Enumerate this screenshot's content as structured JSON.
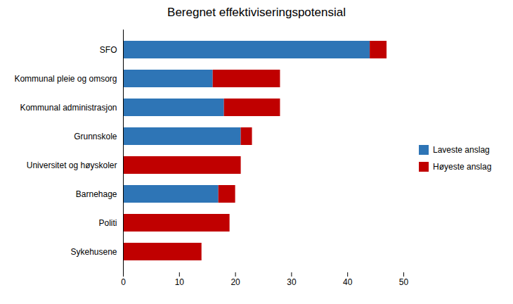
{
  "chart_data": {
    "type": "bar",
    "orientation": "horizontal",
    "stacked": true,
    "title": "Beregnet effektiviseringspotensial",
    "categories": [
      "Sykehusene",
      "Politi",
      "Barnehage",
      "Universitet og høyskoler",
      "Grunnskole",
      "Kommunal administrasjon",
      "Kommunal pleie og omsorg",
      "SFO"
    ],
    "series": [
      {
        "name": "Laveste anslag",
        "color": "#2E75B6",
        "values": [
          0,
          0,
          17,
          0,
          21,
          18,
          16,
          44
        ]
      },
      {
        "name": "Høyeste anslag",
        "color": "#C00000",
        "values": [
          14,
          19,
          3,
          21,
          2,
          10,
          12,
          3
        ]
      }
    ],
    "xlim": [
      0,
      50
    ],
    "xticks": [
      0,
      10,
      20,
      30,
      40,
      50
    ],
    "legend": "right"
  }
}
